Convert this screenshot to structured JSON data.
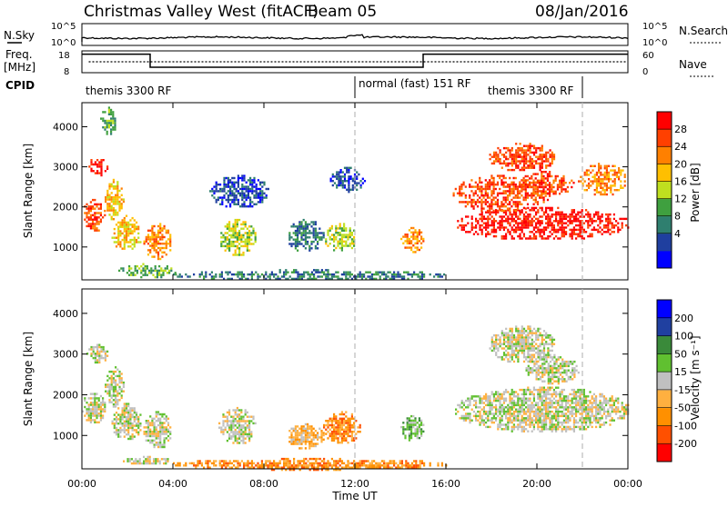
{
  "header": {
    "station": "Christmas Valley West (fitACF)",
    "beam": "Beam 05",
    "date": "08/Jan/2016"
  },
  "strip": {
    "nsky_label": "N.Sky",
    "nsky_ticks": [
      "10^5",
      "10^0"
    ],
    "nsearch_label": "N.Search",
    "freq_label_1": "Freq.",
    "freq_label_2": "[MHz]",
    "freq_ticks": [
      "18",
      "8"
    ],
    "nave_label": "Nave",
    "nave_ticks": [
      "60",
      "0"
    ],
    "cpid_label": "CPID",
    "cpid_segments": [
      {
        "label": "themis 3300 RF",
        "start_hour": 0.0,
        "end_hour": 12.0
      },
      {
        "label": "normal (fast) 151 RF",
        "start_hour": 12.0,
        "end_hour": 22.0
      },
      {
        "label": "themis 3300 RF",
        "start_hour": 22.0,
        "end_hour": 24.0
      }
    ],
    "freq_steps": [
      {
        "start_hour": 0.0,
        "end_hour": 3.0,
        "mhz": 16.5
      },
      {
        "start_hour": 3.0,
        "end_hour": 15.0,
        "mhz": 10.5
      },
      {
        "start_hour": 15.0,
        "end_hour": 24.0,
        "mhz": 16.5
      }
    ],
    "nave_level": 30
  },
  "colors": {
    "power": [
      "#0000ff",
      "#1f3f9f",
      "#2f7f6f",
      "#3fa03f",
      "#bfdf1f",
      "#ffbf00",
      "#ff8000",
      "#ff4000",
      "#ff0000"
    ],
    "velocity": [
      "#ff0000",
      "#ff5000",
      "#ff9000",
      "#ffb040",
      "#c0c0c0",
      "#60c030",
      "#3a8a3a",
      "#2040a0",
      "#0000ff"
    ]
  },
  "chart_data": [
    {
      "type": "heatmap",
      "name": "power",
      "ylabel": "Slant Range [km]",
      "yticks": [
        1000,
        2000,
        3000,
        4000
      ],
      "ylim": [
        180,
        4600
      ],
      "xlim_hours": [
        0,
        24
      ],
      "colorbar_label": "Power [dB]",
      "colorbar_ticks": [
        "28",
        "24",
        "20",
        "16",
        "12",
        "8",
        "4"
      ],
      "regions": [
        {
          "t0": 0.0,
          "t1": 1.0,
          "r0": 1400,
          "r1": 2200,
          "level": 7
        },
        {
          "t0": 1.0,
          "t1": 1.8,
          "r0": 1700,
          "r1": 2700,
          "level": 5
        },
        {
          "t0": 0.2,
          "t1": 1.1,
          "r0": 2800,
          "r1": 3250,
          "level": 8
        },
        {
          "t0": 0.8,
          "t1": 1.5,
          "r0": 3800,
          "r1": 4500,
          "level": 3
        },
        {
          "t0": 1.3,
          "t1": 2.6,
          "r0": 900,
          "r1": 1800,
          "level": 5
        },
        {
          "t0": 2.7,
          "t1": 3.9,
          "r0": 700,
          "r1": 1600,
          "level": 6
        },
        {
          "t0": 1.6,
          "t1": 4.1,
          "r0": 250,
          "r1": 600,
          "level": 3
        },
        {
          "t0": 6.0,
          "t1": 7.6,
          "r0": 800,
          "r1": 1700,
          "level": 4
        },
        {
          "t0": 5.6,
          "t1": 8.2,
          "r0": 2000,
          "r1": 2800,
          "level": 1
        },
        {
          "t0": 9.0,
          "t1": 10.6,
          "r0": 900,
          "r1": 1700,
          "level": 2
        },
        {
          "t0": 10.6,
          "t1": 12.1,
          "r0": 900,
          "r1": 1600,
          "level": 4
        },
        {
          "t0": 10.9,
          "t1": 12.4,
          "r0": 2400,
          "r1": 3000,
          "level": 1
        },
        {
          "t0": 14.0,
          "t1": 15.0,
          "r0": 900,
          "r1": 1500,
          "level": 6
        },
        {
          "t0": 4.0,
          "t1": 16.0,
          "r0": 180,
          "r1": 450,
          "level": 2
        },
        {
          "t0": 16.4,
          "t1": 24.0,
          "r0": 1200,
          "r1": 2000,
          "level": 8
        },
        {
          "t0": 16.3,
          "t1": 20.5,
          "r0": 1900,
          "r1": 2800,
          "level": 7
        },
        {
          "t0": 17.9,
          "t1": 20.8,
          "r0": 2900,
          "r1": 3600,
          "level": 7
        },
        {
          "t0": 19.2,
          "t1": 21.6,
          "r0": 2300,
          "r1": 2900,
          "level": 7
        },
        {
          "t0": 21.8,
          "t1": 24.0,
          "r0": 2300,
          "r1": 3100,
          "level": 6
        }
      ]
    },
    {
      "type": "heatmap",
      "name": "velocity",
      "ylabel": "Slant Range [km]",
      "yticks": [
        1000,
        2000,
        3000,
        4000
      ],
      "ylim": [
        180,
        4600
      ],
      "xlim_hours": [
        0,
        24
      ],
      "xlabel": "Time UT",
      "xticks": [
        "00:00",
        "04:00",
        "08:00",
        "12:00",
        "16:00",
        "20:00",
        "00:00"
      ],
      "colorbar_label": "Velocity [m s⁻¹]",
      "colorbar_ticks": [
        "200",
        "100",
        "50",
        "15",
        "-15",
        "-50",
        "-100",
        "-200"
      ],
      "regions": [
        {
          "t0": 0.0,
          "t1": 1.0,
          "r0": 1300,
          "r1": 2100,
          "level": 4
        },
        {
          "t0": 1.0,
          "t1": 1.8,
          "r0": 1700,
          "r1": 2700,
          "level": 4
        },
        {
          "t0": 0.2,
          "t1": 1.1,
          "r0": 2800,
          "r1": 3250,
          "level": 4
        },
        {
          "t0": 1.3,
          "t1": 2.6,
          "r0": 900,
          "r1": 1800,
          "level": 4
        },
        {
          "t0": 2.7,
          "t1": 3.9,
          "r0": 700,
          "r1": 1600,
          "level": 4
        },
        {
          "t0": 1.8,
          "t1": 3.9,
          "r0": 300,
          "r1": 500,
          "level": 4
        },
        {
          "t0": 6.0,
          "t1": 7.6,
          "r0": 800,
          "r1": 1700,
          "level": 4
        },
        {
          "t0": 9.0,
          "t1": 10.6,
          "r0": 700,
          "r1": 1300,
          "level": 3
        },
        {
          "t0": 10.6,
          "t1": 12.2,
          "r0": 800,
          "r1": 1600,
          "level": 2
        },
        {
          "t0": 14.0,
          "t1": 15.0,
          "r0": 900,
          "r1": 1500,
          "level": 5
        },
        {
          "t0": 4.0,
          "t1": 16.0,
          "r0": 180,
          "r1": 450,
          "level": 2
        },
        {
          "t0": 16.4,
          "t1": 24.0,
          "r0": 1100,
          "r1": 2200,
          "level": 4
        },
        {
          "t0": 17.9,
          "t1": 20.8,
          "r0": 2800,
          "r1": 3700,
          "level": 4
        },
        {
          "t0": 19.5,
          "t1": 21.8,
          "r0": 2300,
          "r1": 3000,
          "level": 4
        }
      ]
    }
  ]
}
